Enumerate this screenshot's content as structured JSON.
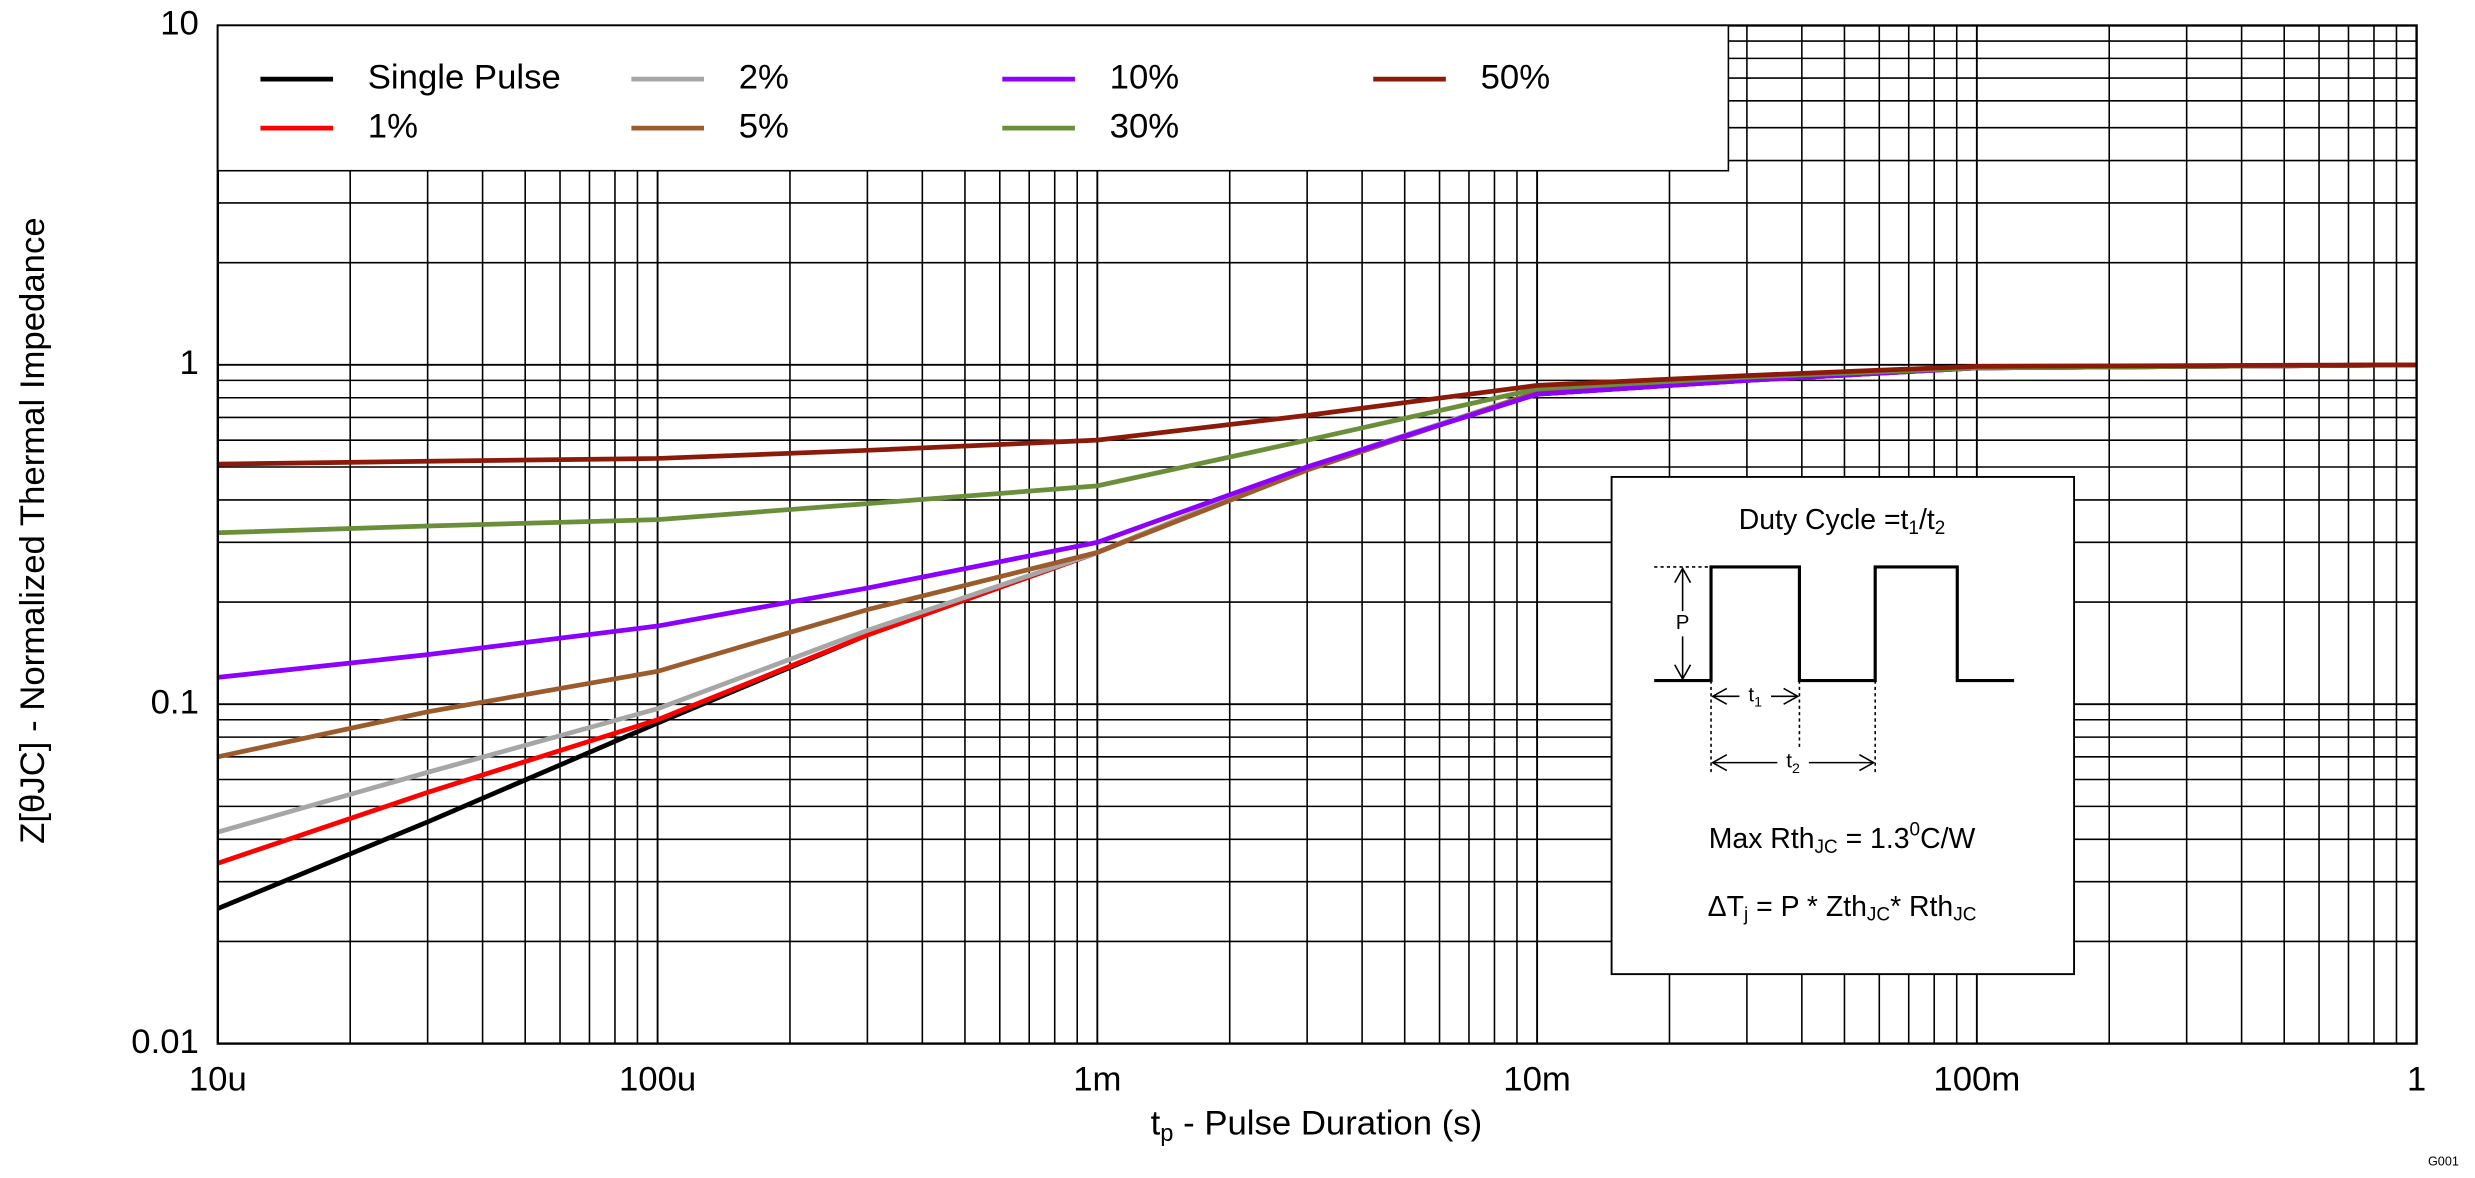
{
  "chart_data": {
    "type": "line",
    "xlabel": [
      "t",
      "p",
      " - Pulse Duration (s)"
    ],
    "ylabel": "Z[θJC] - Normalized Thermal Impedance",
    "log_x": true,
    "log_y": true,
    "grid": true,
    "legend": "top-left",
    "xlim": [
      1e-05,
      1
    ],
    "ylim": [
      0.01,
      10
    ],
    "xticks": [
      {
        "value": 1e-05,
        "label": "10u"
      },
      {
        "value": 0.0001,
        "label": "100u"
      },
      {
        "value": 0.001,
        "label": "1m"
      },
      {
        "value": 0.01,
        "label": "10m"
      },
      {
        "value": 0.1,
        "label": "100m"
      },
      1
    ],
    "yticks": [
      0.01,
      0.1,
      1,
      10
    ],
    "x": [
      1e-05,
      3e-05,
      0.0001,
      0.0003,
      0.001,
      0.003,
      0.01,
      0.03,
      0.1,
      1
    ],
    "series": [
      {
        "name": "Single Pulse",
        "color": "#000000",
        "values": [
          0.025,
          0.045,
          0.088,
          0.16,
          0.28,
          0.5,
          0.82,
          0.9,
          0.98,
          1.0
        ]
      },
      {
        "name": "1%",
        "color": "#ff0000",
        "values": [
          0.034,
          0.055,
          0.09,
          0.16,
          0.28,
          0.5,
          0.82,
          0.9,
          0.98,
          1.0
        ]
      },
      {
        "name": "2%",
        "color": "#a6a6a6",
        "values": [
          0.042,
          0.063,
          0.097,
          0.165,
          0.28,
          0.5,
          0.83,
          0.9,
          0.98,
          1.0
        ]
      },
      {
        "name": "5%",
        "color": "#9c5b2c",
        "values": [
          0.07,
          0.095,
          0.125,
          0.19,
          0.28,
          0.49,
          0.83,
          0.9,
          0.98,
          1.0
        ]
      },
      {
        "name": "10%",
        "color": "#8b00ff",
        "values": [
          0.12,
          0.14,
          0.17,
          0.22,
          0.3,
          0.5,
          0.82,
          0.9,
          0.98,
          1.0
        ]
      },
      {
        "name": "30%",
        "color": "#6b8e3a",
        "values": [
          0.32,
          0.335,
          0.35,
          0.39,
          0.44,
          0.6,
          0.85,
          0.92,
          0.98,
          1.0
        ]
      },
      {
        "name": "50%",
        "color": "#8b1a0a",
        "values": [
          0.51,
          0.52,
          0.53,
          0.56,
          0.6,
          0.71,
          0.87,
          0.93,
          0.99,
          1.0
        ]
      }
    ],
    "inset": {
      "duty_cycle": [
        "Duty Cycle =t",
        "1",
        "/t",
        "2"
      ],
      "p": "P",
      "t1": [
        "t",
        "1"
      ],
      "t2": [
        "t",
        "2"
      ],
      "max_rth": [
        "Max Rth",
        "JC",
        " = 1.3",
        "0",
        "C/W"
      ],
      "delta": [
        "ΔT",
        "j",
        " = P * Zth",
        "JC",
        "* Rth",
        "JC"
      ]
    },
    "figure_id": "G001"
  }
}
